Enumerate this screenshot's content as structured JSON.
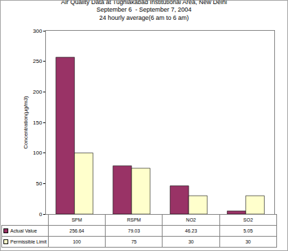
{
  "chart_data": {
    "type": "bar",
    "title": "Air Quality Data at Tughlakabad Institutional Area, New Delhi\nSeptember 6  - September 7, 2004\n24 hourly average(6 am to 6 am)",
    "y_label": "Concentration(µg/m3)",
    "categories": [
      "SPM",
      "RSPM",
      "NO2",
      "SO2"
    ],
    "series": [
      {
        "name": "Actual Value",
        "color": "#993366",
        "values": [
          256.64,
          79.03,
          46.23,
          5.05
        ]
      },
      {
        "name": "Permissible Limit",
        "color": "#ffffcc",
        "values": [
          100,
          75,
          30,
          30
        ]
      }
    ],
    "ylim": [
      0,
      300
    ],
    "yticks": [
      0,
      50,
      100,
      150,
      200,
      250,
      300
    ],
    "grid": false,
    "data_labels": false
  }
}
